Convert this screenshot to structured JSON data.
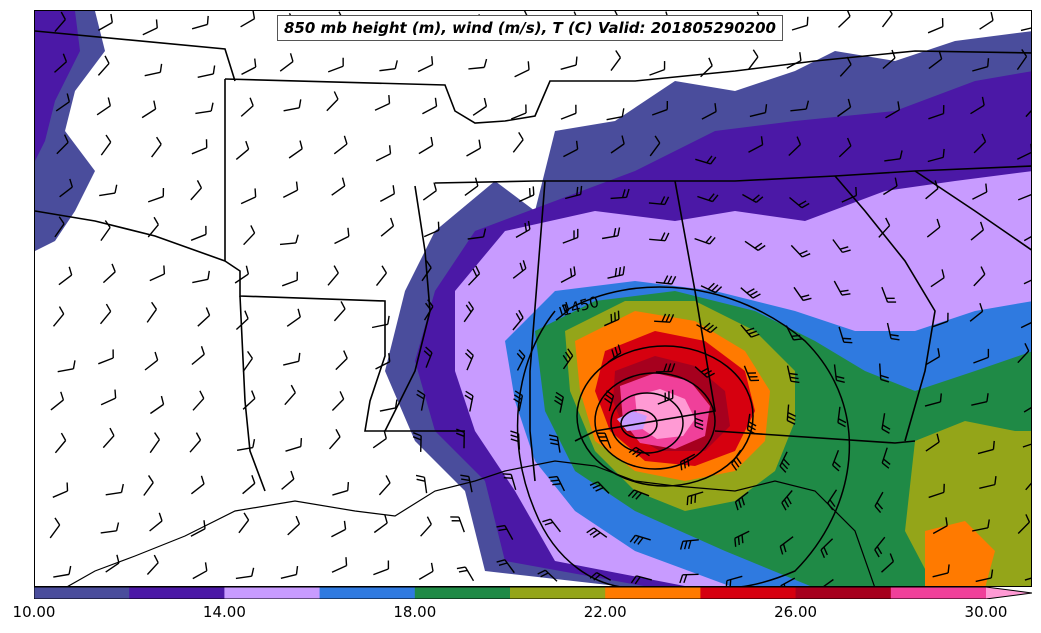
{
  "title": "850 mb height (m), wind (m/s), T (C) Valid: 201805290200",
  "contour_label": "1450",
  "colorbar": {
    "colors": [
      "#4a4d9c",
      "#4b18a6",
      "#c89bff",
      "#2f7ae0",
      "#1f8a46",
      "#94a519",
      "#ff7a00",
      "#d6000f",
      "#a6001e",
      "#f0409a",
      "#ff9ad4"
    ],
    "tick_labels": [
      "10.00",
      "14.00",
      "18.00",
      "22.00",
      "26.00",
      "30.00"
    ]
  },
  "fill_colors": {
    "c1": "#4a4d9c",
    "c2": "#4b18a6",
    "c3": "#c89bff",
    "c4": "#2f7ae0",
    "c5": "#1f8a46",
    "c6": "#94a519",
    "c7": "#ff7a00",
    "c8": "#d6000f",
    "c9": "#a6001e",
    "c10": "#f0409a",
    "c11": "#ff9ad4"
  }
}
